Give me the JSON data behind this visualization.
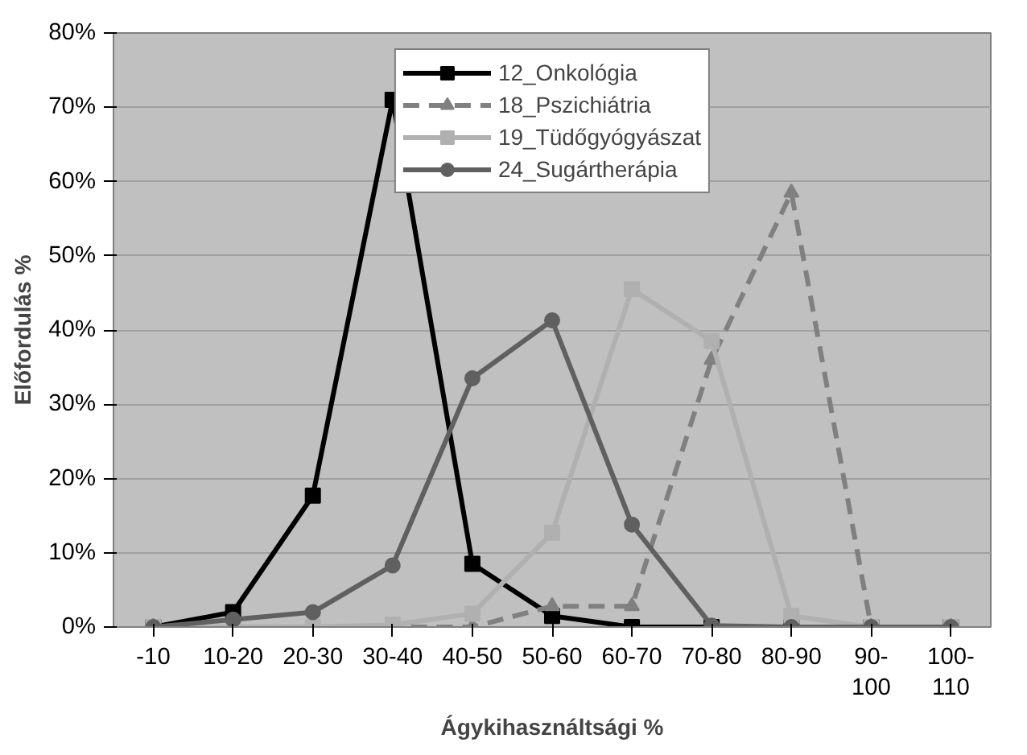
{
  "chart_data": {
    "type": "line",
    "xlabel": "Ágykihasználtsági %",
    "ylabel": "Előfordulás %",
    "categories": [
      "-10",
      "10-20",
      "20-30",
      "30-40",
      "40-50",
      "50-60",
      "60-70",
      "70-80",
      "80-90",
      "90-100",
      "100-110"
    ],
    "ylim": [
      0,
      80
    ],
    "yticks": [
      {
        "value": 0,
        "label": "0%"
      },
      {
        "value": 10,
        "label": "10%"
      },
      {
        "value": 20,
        "label": "20%"
      },
      {
        "value": 30,
        "label": "30%"
      },
      {
        "value": 40,
        "label": "40%"
      },
      {
        "value": 50,
        "label": "50%"
      },
      {
        "value": 60,
        "label": "60%"
      },
      {
        "value": 70,
        "label": "70%"
      },
      {
        "value": 80,
        "label": "80%"
      }
    ],
    "grid": "y",
    "legend": "top",
    "series": [
      {
        "name": "12_Onkológia",
        "color": "#000000",
        "marker": "square",
        "line_style": "solid",
        "values": [
          0,
          2,
          17.7,
          71,
          8.5,
          1.5,
          0,
          0,
          0,
          0,
          0
        ]
      },
      {
        "name": "18_Pszichiátria",
        "color": "#808080",
        "marker": "triangle",
        "line_style": "dashed",
        "values": [
          0,
          0,
          0,
          0,
          0,
          2.8,
          2.8,
          36,
          58.5,
          0,
          0
        ]
      },
      {
        "name": "19_Tüdőgyógyászat",
        "color": "#b0b0b0",
        "marker": "square",
        "line_style": "solid",
        "values": [
          0,
          0,
          0,
          0.3,
          1.8,
          12.7,
          45.5,
          38.5,
          1.5,
          0,
          0
        ]
      },
      {
        "name": "24_Sugártherápia",
        "color": "#606060",
        "marker": "circle",
        "line_style": "solid",
        "values": [
          0,
          1,
          2,
          8.3,
          33.5,
          41.3,
          13.8,
          0.2,
          0,
          0,
          0
        ]
      }
    ]
  }
}
